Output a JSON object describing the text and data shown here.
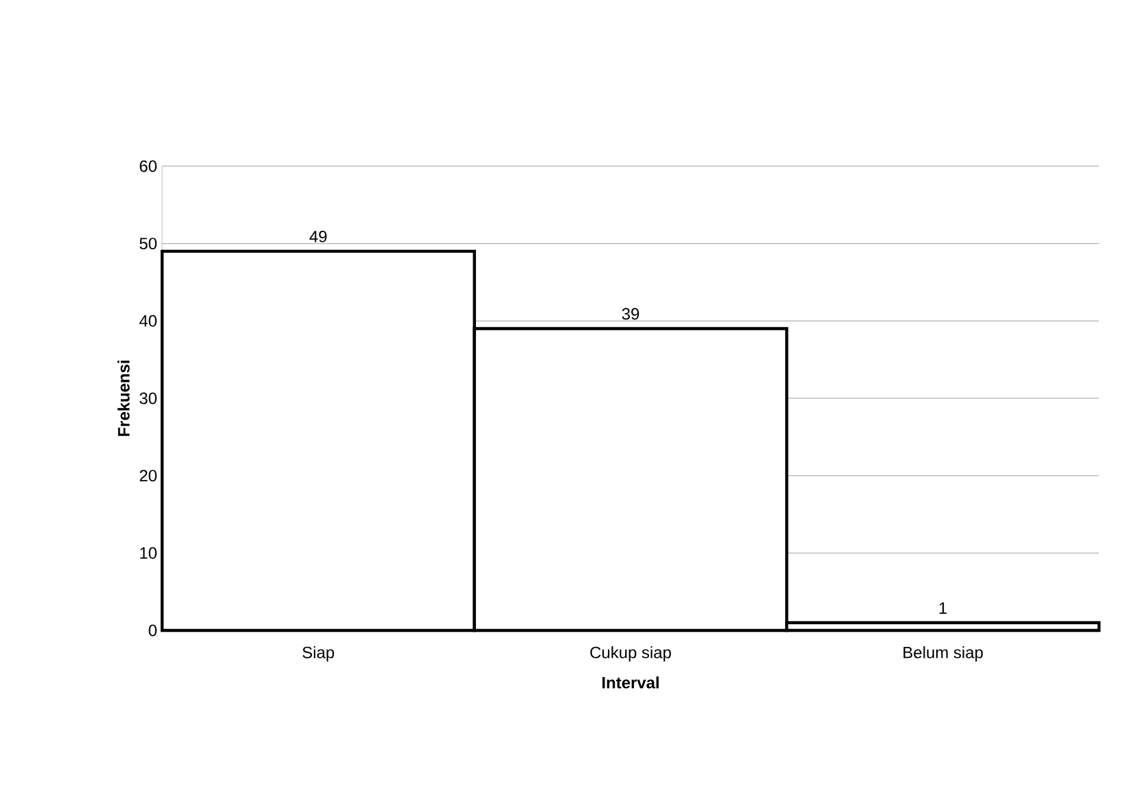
{
  "chart_data": {
    "type": "bar",
    "xlabel": "Interval",
    "ylabel": "Frekuensi",
    "categories": [
      "Siap",
      "Cukup siap",
      "Belum siap"
    ],
    "values": [
      49,
      39,
      1
    ],
    "color": "#ffffff",
    "ylim": [
      0,
      60
    ],
    "yticks": [
      0,
      10,
      20,
      30,
      40,
      50,
      60
    ],
    "grid": "y",
    "data_labels": true
  }
}
